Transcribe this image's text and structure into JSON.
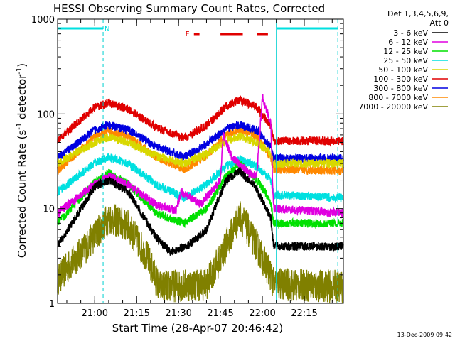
{
  "chart_data": {
    "type": "line",
    "title": "HESSI Observing Summary Count Rates, Corrected",
    "xlabel": "Start Time (28-Apr-07 20:46:42)",
    "ylabel": "Corrected Count Rate (s^-1 detector^-1)",
    "ylabel_parts": {
      "base": "Corrected Count Rate (s",
      "exp1": "-1",
      "middle": " detector",
      "exp2": "-1",
      "end": ")"
    },
    "y_scale": "log",
    "ylim": [
      1,
      1000
    ],
    "y_ticks": [
      {
        "value": 1,
        "label": "1"
      },
      {
        "value": 10,
        "label": "10"
      },
      {
        "value": 100,
        "label": "100"
      },
      {
        "value": 1000,
        "label": "1000"
      }
    ],
    "xlim": [
      "20:46:42",
      "22:29:00"
    ],
    "x_ticks": [
      {
        "value": "21:00",
        "label": "21:00"
      },
      {
        "value": "21:15",
        "label": "21:15"
      },
      {
        "value": "21:30",
        "label": "21:30"
      },
      {
        "value": "21:45",
        "label": "21:45"
      },
      {
        "value": "22:00",
        "label": "22:00"
      },
      {
        "value": "22:15",
        "label": "22:15"
      }
    ],
    "legend": {
      "placement": "right",
      "header": [
        "Det 1,3,4,5,6,9,",
        "Att 0"
      ]
    },
    "series": [
      {
        "name": "3 - 6 keV",
        "color": "#000000",
        "points": [
          [
            "20:46:42",
            4
          ],
          [
            "21:00:00",
            17
          ],
          [
            "21:05:00",
            20
          ],
          [
            "21:12:00",
            15
          ],
          [
            "21:22:00",
            5
          ],
          [
            "21:27:00",
            3.5
          ],
          [
            "21:33:00",
            4
          ],
          [
            "21:40:00",
            6
          ],
          [
            "21:47:00",
            20
          ],
          [
            "21:52:00",
            25
          ],
          [
            "21:58:00",
            16
          ],
          [
            "22:03:00",
            8
          ],
          [
            "22:04:00",
            4
          ],
          [
            "22:29:00",
            4
          ]
        ]
      },
      {
        "name": "6 - 12 keV",
        "color": "#e000e0",
        "points": [
          [
            "20:46:42",
            9
          ],
          [
            "21:00:00",
            18
          ],
          [
            "21:05:00",
            22
          ],
          [
            "21:12:00",
            18
          ],
          [
            "21:22:00",
            11
          ],
          [
            "21:29:00",
            9.5
          ],
          [
            "21:31:00",
            15
          ],
          [
            "21:34:00",
            13
          ],
          [
            "21:38:00",
            11
          ],
          [
            "21:45:00",
            20
          ],
          [
            "21:46:00",
            60
          ],
          [
            "21:49:00",
            35
          ],
          [
            "21:55:00",
            24
          ],
          [
            "21:58:00",
            22
          ],
          [
            "22:00:00",
            150
          ],
          [
            "22:03:00",
            80
          ],
          [
            "22:04:00",
            10
          ],
          [
            "22:29:00",
            9
          ]
        ]
      },
      {
        "name": "12 - 25 keV",
        "color": "#00e000",
        "points": [
          [
            "20:46:42",
            7
          ],
          [
            "21:00:00",
            19
          ],
          [
            "21:05:00",
            24
          ],
          [
            "21:12:00",
            18
          ],
          [
            "21:22:00",
            9
          ],
          [
            "21:32:00",
            7
          ],
          [
            "21:40:00",
            10
          ],
          [
            "21:47:00",
            22
          ],
          [
            "21:52:00",
            30
          ],
          [
            "21:58:00",
            20
          ],
          [
            "22:03:00",
            12
          ],
          [
            "22:04:00",
            7
          ],
          [
            "22:29:00",
            7
          ]
        ]
      },
      {
        "name": "25 - 50 keV",
        "color": "#00e0e0",
        "points": [
          [
            "20:46:42",
            15
          ],
          [
            "21:00:00",
            30
          ],
          [
            "21:05:00",
            35
          ],
          [
            "21:12:00",
            30
          ],
          [
            "21:22:00",
            18
          ],
          [
            "21:32:00",
            13
          ],
          [
            "21:40:00",
            18
          ],
          [
            "21:47:00",
            28
          ],
          [
            "21:52:00",
            33
          ],
          [
            "21:58:00",
            28
          ],
          [
            "22:03:00",
            20
          ],
          [
            "22:04:00",
            14
          ],
          [
            "22:29:00",
            13
          ]
        ]
      },
      {
        "name": "50 - 100 keV",
        "color": "#d8d800",
        "points": [
          [
            "20:46:42",
            30
          ],
          [
            "21:00:00",
            50
          ],
          [
            "21:05:00",
            57
          ],
          [
            "21:12:00",
            50
          ],
          [
            "21:22:00",
            36
          ],
          [
            "21:32:00",
            30
          ],
          [
            "21:40:00",
            38
          ],
          [
            "21:47:00",
            52
          ],
          [
            "21:52:00",
            58
          ],
          [
            "21:58:00",
            50
          ],
          [
            "22:03:00",
            38
          ],
          [
            "22:04:00",
            30
          ],
          [
            "22:29:00",
            30
          ]
        ]
      },
      {
        "name": "100 - 300 keV",
        "color": "#e00000",
        "points": [
          [
            "20:46:42",
            52
          ],
          [
            "21:00:00",
            118
          ],
          [
            "21:05:00",
            130
          ],
          [
            "21:12:00",
            112
          ],
          [
            "21:22:00",
            72
          ],
          [
            "21:32:00",
            55
          ],
          [
            "21:40:00",
            75
          ],
          [
            "21:47:00",
            120
          ],
          [
            "21:52:00",
            140
          ],
          [
            "21:58:00",
            118
          ],
          [
            "22:03:00",
            75
          ],
          [
            "22:04:00",
            52
          ],
          [
            "22:29:00",
            52
          ]
        ]
      },
      {
        "name": "300 - 800 keV",
        "color": "#0000e0",
        "points": [
          [
            "20:46:42",
            34
          ],
          [
            "21:00:00",
            68
          ],
          [
            "21:05:00",
            76
          ],
          [
            "21:12:00",
            68
          ],
          [
            "21:22:00",
            45
          ],
          [
            "21:32:00",
            35
          ],
          [
            "21:40:00",
            48
          ],
          [
            "21:47:00",
            70
          ],
          [
            "21:52:00",
            77
          ],
          [
            "21:58:00",
            67
          ],
          [
            "22:03:00",
            45
          ],
          [
            "22:04:00",
            34
          ],
          [
            "22:29:00",
            34
          ]
        ]
      },
      {
        "name": "800 - 7000 keV",
        "color": "#ff8800",
        "points": [
          [
            "20:46:42",
            25
          ],
          [
            "21:00:00",
            58
          ],
          [
            "21:05:00",
            65
          ],
          [
            "21:12:00",
            58
          ],
          [
            "21:22:00",
            35
          ],
          [
            "21:32:00",
            26
          ],
          [
            "21:40:00",
            36
          ],
          [
            "21:47:00",
            60
          ],
          [
            "21:52:00",
            68
          ],
          [
            "21:58:00",
            58
          ],
          [
            "22:03:00",
            35
          ],
          [
            "22:04:00",
            26
          ],
          [
            "22:29:00",
            25
          ]
        ]
      },
      {
        "name": "7000 - 20000 keV",
        "color": "#808000",
        "points": [
          [
            "20:46:42",
            1.8
          ],
          [
            "20:57:00",
            4
          ],
          [
            "21:05:00",
            8
          ],
          [
            "21:12:00",
            6.5
          ],
          [
            "21:19:00",
            3
          ],
          [
            "21:23:00",
            1.5
          ],
          [
            "21:40:00",
            1.6
          ],
          [
            "21:45:00",
            3
          ],
          [
            "21:52:00",
            8.5
          ],
          [
            "21:58:00",
            4
          ],
          [
            "22:03:00",
            2
          ],
          [
            "22:04:00",
            1.6
          ],
          [
            "22:29:00",
            1.5
          ]
        ]
      }
    ],
    "annotations": {
      "night_markers": [
        {
          "label": "N",
          "start": "20:46:42",
          "end": "21:03:00",
          "color": "#00e0e0"
        },
        {
          "label": "",
          "start": "22:05:00",
          "end": "22:27:00",
          "color": "#00e0e0"
        }
      ],
      "flare_marker": {
        "label": "F",
        "color": "#e00000",
        "segments": [
          [
            "21:35:30",
            "21:37:30"
          ],
          [
            "21:45:00",
            "21:53:00"
          ],
          [
            "21:58:00",
            "22:02:00"
          ]
        ]
      },
      "vertical_lines": [
        "21:03:00",
        "22:05:00",
        "22:27:00"
      ]
    },
    "timestamp": "13-Dec-2009 09:42"
  }
}
